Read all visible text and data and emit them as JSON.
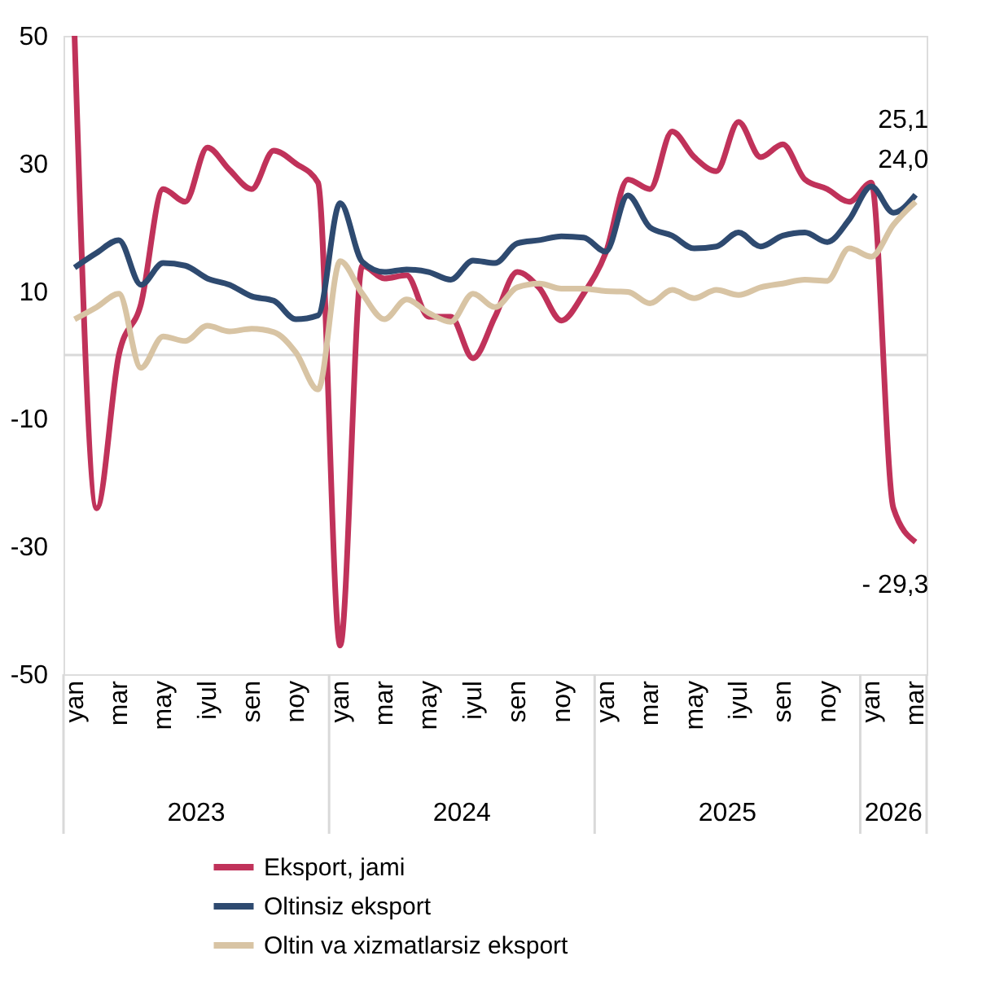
{
  "chart_data": {
    "type": "line",
    "categories": [
      "yan",
      null,
      "mar",
      null,
      "may",
      null,
      "iyul",
      null,
      "sen",
      null,
      "noy",
      null,
      "yan",
      null,
      "mar",
      null,
      "may",
      null,
      "iyul",
      null,
      "sen",
      null,
      "noy",
      null,
      "yan",
      null,
      "mar",
      null,
      "may",
      null,
      "iyul",
      null,
      "sen",
      null,
      "noy",
      null,
      "yan",
      null,
      "mar"
    ],
    "series": [
      {
        "name": "Eksport, jami",
        "color": "#c0325a",
        "values": [
          50,
          -24,
          0,
          8,
          26,
          24,
          32.5,
          29,
          26,
          32,
          30,
          27,
          -45.5,
          14,
          12,
          12.5,
          6,
          6,
          -0.5,
          6,
          13,
          10.5,
          5.4,
          9.6,
          16,
          27.5,
          26,
          35,
          31,
          28.8,
          36.5,
          31,
          33,
          27.5,
          26,
          24,
          27,
          -24,
          -29.3
        ],
        "value_labels": [
          null,
          null,
          null,
          null,
          null,
          null,
          null,
          null,
          null,
          null,
          null,
          null,
          null,
          null,
          null,
          null,
          null,
          null,
          null,
          null,
          null,
          null,
          null,
          null,
          null,
          null,
          null,
          null,
          null,
          null,
          null,
          null,
          null,
          null,
          null,
          null,
          null,
          null,
          "- 29,3"
        ]
      },
      {
        "name": "Oltinsiz eksport",
        "color": "#2e4a70",
        "values": [
          13.7,
          16,
          18,
          11,
          14.4,
          14,
          12,
          11,
          9.2,
          8.5,
          5.6,
          6.2,
          23.8,
          14.6,
          13,
          13.4,
          13,
          11.8,
          14.8,
          14.4,
          17.5,
          18,
          18.6,
          18.4,
          16.2,
          25,
          20,
          18.7,
          16.7,
          17,
          19.2,
          17,
          18.7,
          19.2,
          17.7,
          21.2,
          26.4,
          22.3,
          25.1
        ],
        "value_labels": [
          null,
          null,
          null,
          null,
          null,
          null,
          null,
          null,
          null,
          null,
          null,
          null,
          null,
          null,
          null,
          null,
          null,
          null,
          null,
          null,
          null,
          null,
          null,
          null,
          null,
          null,
          null,
          null,
          null,
          null,
          null,
          null,
          null,
          null,
          null,
          null,
          null,
          null,
          "25,1"
        ]
      },
      {
        "name": "Oltin va xizmatlarsiz eksport",
        "color": "#d8c4a4",
        "values": [
          5.6,
          7.5,
          9.6,
          -2,
          2.9,
          2.2,
          4.6,
          3.7,
          4.1,
          3.6,
          0.4,
          -5.4,
          14.7,
          9.6,
          5.6,
          8.7,
          6.6,
          5.2,
          9.6,
          7.5,
          10.6,
          11.2,
          10.4,
          10.4,
          10,
          9.9,
          8.1,
          10.2,
          8.9,
          10.2,
          9.4,
          10.6,
          11.2,
          11.8,
          11.6,
          16.7,
          15.4,
          20.4,
          24.0
        ],
        "value_labels": [
          null,
          null,
          null,
          null,
          null,
          null,
          null,
          null,
          null,
          null,
          null,
          null,
          null,
          null,
          null,
          null,
          null,
          null,
          null,
          null,
          null,
          null,
          null,
          null,
          null,
          null,
          null,
          null,
          null,
          null,
          null,
          null,
          null,
          null,
          null,
          null,
          null,
          null,
          "24,0"
        ]
      }
    ],
    "ylim": [
      -50,
      50
    ],
    "yticks": [
      -50,
      -30,
      -10,
      10,
      30,
      50
    ],
    "ref_lines": [
      {
        "axis": "y",
        "value": 0,
        "color": "#d9d9d9"
      }
    ],
    "annotations": [
      "2023",
      "2024",
      "2025",
      "2026"
    ],
    "grid": false,
    "legend": "bottom",
    "line_style": "solid",
    "marker": "none"
  }
}
